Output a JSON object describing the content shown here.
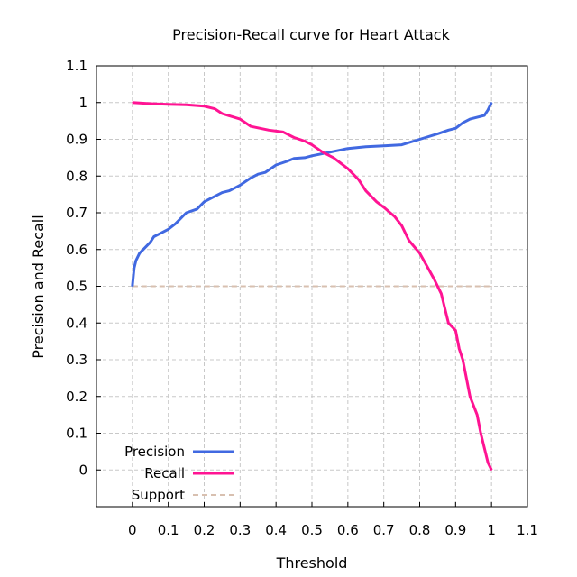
{
  "chart_data": {
    "type": "line",
    "title": "Precision-Recall curve for Heart Attack",
    "xlabel": "Threshold",
    "ylabel": "Precision and Recall",
    "xlim": [
      -0.1,
      1.1
    ],
    "ylim": [
      -0.1,
      1.1
    ],
    "x_ticks": [
      "0",
      "0.1",
      "0.2",
      "0.3",
      "0.4",
      "0.5",
      "0.6",
      "0.7",
      "0.8",
      "0.9",
      "1",
      "1.1"
    ],
    "y_ticks": [
      "0",
      "0.1",
      "0.2",
      "0.3",
      "0.4",
      "0.5",
      "0.6",
      "0.7",
      "0.8",
      "0.9",
      "1",
      "1.1"
    ],
    "grid": true,
    "legend_position": "bottom-left",
    "series": [
      {
        "name": "Precision",
        "color": "#4169e1",
        "style": "solid",
        "points": [
          [
            0.0,
            0.5
          ],
          [
            0.005,
            0.55
          ],
          [
            0.01,
            0.57
          ],
          [
            0.02,
            0.59
          ],
          [
            0.03,
            0.6
          ],
          [
            0.05,
            0.62
          ],
          [
            0.06,
            0.635
          ],
          [
            0.08,
            0.645
          ],
          [
            0.1,
            0.655
          ],
          [
            0.12,
            0.67
          ],
          [
            0.15,
            0.7
          ],
          [
            0.18,
            0.71
          ],
          [
            0.2,
            0.73
          ],
          [
            0.22,
            0.74
          ],
          [
            0.25,
            0.755
          ],
          [
            0.27,
            0.76
          ],
          [
            0.3,
            0.775
          ],
          [
            0.33,
            0.795
          ],
          [
            0.35,
            0.805
          ],
          [
            0.37,
            0.81
          ],
          [
            0.4,
            0.83
          ],
          [
            0.43,
            0.84
          ],
          [
            0.45,
            0.848
          ],
          [
            0.48,
            0.85
          ],
          [
            0.5,
            0.855
          ],
          [
            0.55,
            0.865
          ],
          [
            0.6,
            0.875
          ],
          [
            0.65,
            0.88
          ],
          [
            0.7,
            0.882
          ],
          [
            0.75,
            0.885
          ],
          [
            0.8,
            0.9
          ],
          [
            0.85,
            0.915
          ],
          [
            0.88,
            0.925
          ],
          [
            0.9,
            0.93
          ],
          [
            0.92,
            0.945
          ],
          [
            0.94,
            0.955
          ],
          [
            0.96,
            0.96
          ],
          [
            0.98,
            0.965
          ],
          [
            0.99,
            0.98
          ],
          [
            1.0,
            1.0
          ]
        ]
      },
      {
        "name": "Recall",
        "color": "#ff1493",
        "style": "solid",
        "points": [
          [
            0.0,
            1.0
          ],
          [
            0.05,
            0.997
          ],
          [
            0.1,
            0.995
          ],
          [
            0.15,
            0.994
          ],
          [
            0.2,
            0.99
          ],
          [
            0.23,
            0.983
          ],
          [
            0.25,
            0.97
          ],
          [
            0.3,
            0.955
          ],
          [
            0.33,
            0.935
          ],
          [
            0.38,
            0.925
          ],
          [
            0.42,
            0.92
          ],
          [
            0.45,
            0.905
          ],
          [
            0.48,
            0.895
          ],
          [
            0.5,
            0.885
          ],
          [
            0.53,
            0.865
          ],
          [
            0.56,
            0.85
          ],
          [
            0.58,
            0.835
          ],
          [
            0.6,
            0.82
          ],
          [
            0.63,
            0.79
          ],
          [
            0.65,
            0.76
          ],
          [
            0.68,
            0.73
          ],
          [
            0.7,
            0.715
          ],
          [
            0.73,
            0.69
          ],
          [
            0.75,
            0.665
          ],
          [
            0.77,
            0.625
          ],
          [
            0.8,
            0.59
          ],
          [
            0.82,
            0.555
          ],
          [
            0.84,
            0.52
          ],
          [
            0.86,
            0.48
          ],
          [
            0.87,
            0.44
          ],
          [
            0.88,
            0.4
          ],
          [
            0.9,
            0.38
          ],
          [
            0.91,
            0.33
          ],
          [
            0.92,
            0.3
          ],
          [
            0.93,
            0.25
          ],
          [
            0.94,
            0.2
          ],
          [
            0.96,
            0.15
          ],
          [
            0.97,
            0.1
          ],
          [
            0.98,
            0.06
          ],
          [
            0.99,
            0.02
          ],
          [
            1.0,
            0.0
          ]
        ]
      },
      {
        "name": "Support",
        "color": "#d8c0b0",
        "style": "dashed",
        "points": [
          [
            0.0,
            0.5
          ],
          [
            1.0,
            0.5
          ]
        ]
      }
    ]
  }
}
